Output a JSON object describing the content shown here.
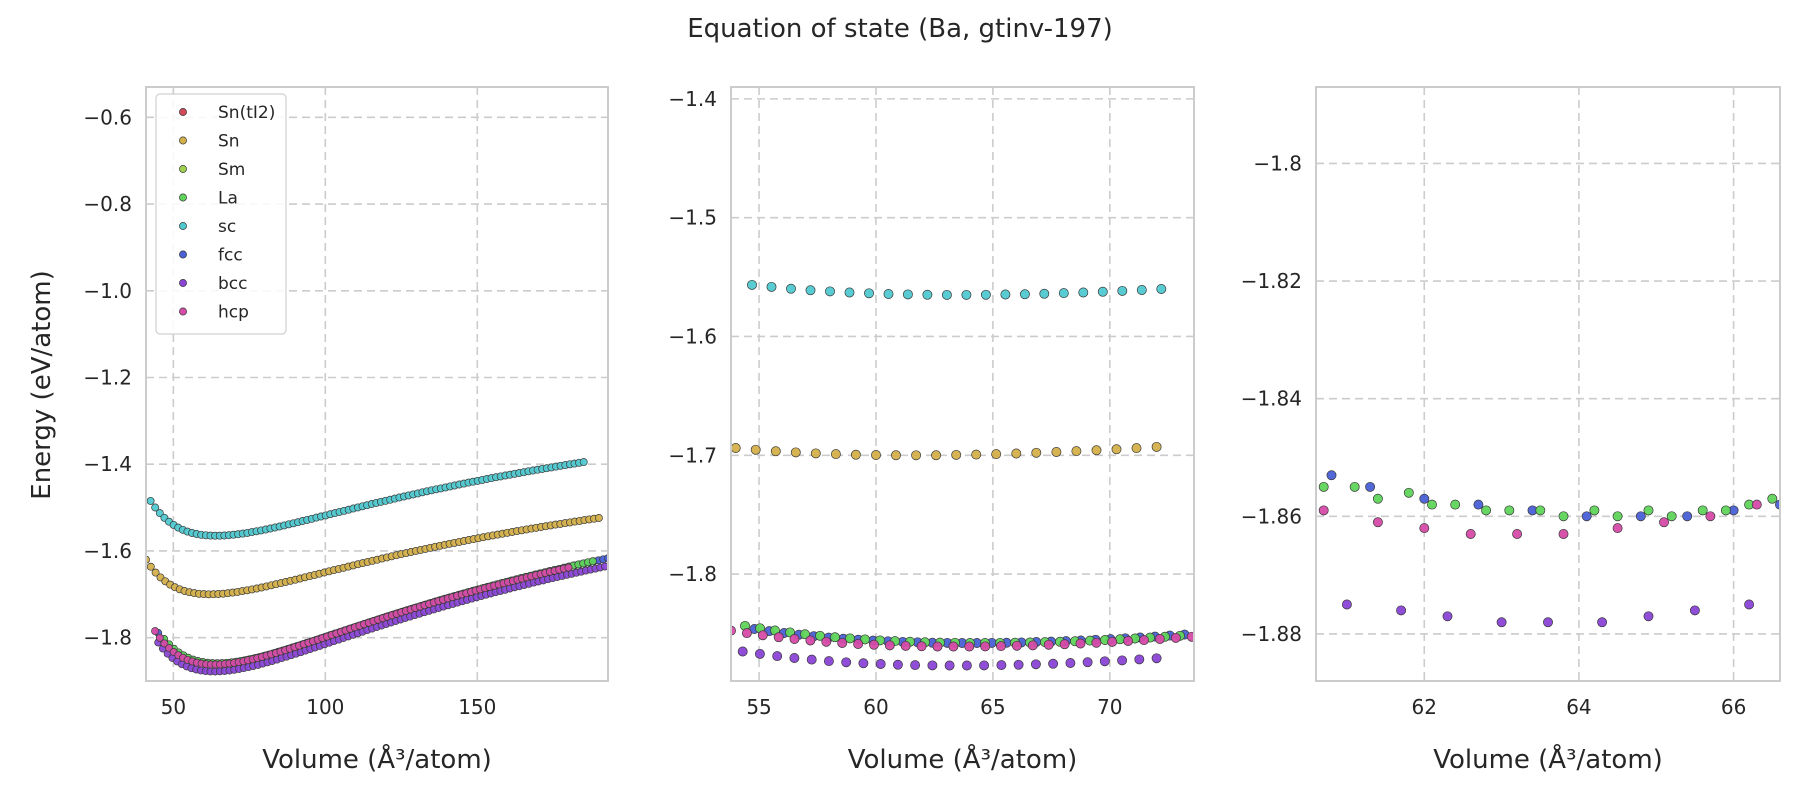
{
  "chart_data": {
    "title": "Equation of state (Ba, gtinv-197)",
    "ylabel": "Energy (eV/atom)",
    "xlabel": "Volume (Å³/atom)",
    "legend": {
      "placement": "upper-left of first panel",
      "entries": [
        {
          "name": "Sn(tI2)",
          "color": "#d1495b"
        },
        {
          "name": "Sn",
          "color": "#d4b04a"
        },
        {
          "name": "Sm",
          "color": "#9fd14f"
        },
        {
          "name": "La",
          "color": "#5fd45a"
        },
        {
          "name": "sc",
          "color": "#4fc9d0"
        },
        {
          "name": "fcc",
          "color": "#4a60d6"
        },
        {
          "name": "bcc",
          "color": "#8a44d6"
        },
        {
          "name": "hcp",
          "color": "#d64aa8"
        }
      ]
    },
    "grid": true,
    "panels": [
      {
        "type": "scatter",
        "xlim": [
          41,
          193
        ],
        "ylim": [
          -1.9,
          -0.53
        ],
        "xticks": [
          50,
          100,
          150
        ],
        "yticks": [
          -1.8,
          -1.6,
          -1.4,
          -1.2,
          -1.0,
          -0.8,
          -0.6
        ],
        "series": [
          {
            "name": "sc",
            "params": {
              "v0": 64,
              "e0": -1.565,
              "b": 0.0105,
              "bp": 4.5,
              "vmin": 42.5,
              "vmax": 185,
              "n": 95
            }
          },
          {
            "name": "Sn",
            "params": {
              "v0": 62,
              "e0": -1.7,
              "b": 0.0105,
              "bp": 4.5,
              "vmin": 41,
              "vmax": 190,
              "n": 95
            }
          },
          {
            "name": "bcc",
            "params": {
              "v0": 63.5,
              "e0": -1.878,
              "b": 0.0135,
              "bp": 4.3,
              "vmin": 45,
              "vmax": 192,
              "n": 95
            }
          },
          {
            "name": "fcc",
            "params": {
              "v0": 64,
              "e0": -1.86,
              "b": 0.0135,
              "bp": 4.3,
              "vmin": 45,
              "vmax": 193,
              "n": 95
            }
          },
          {
            "name": "La",
            "params": {
              "v0": 64.5,
              "e0": -1.859,
              "b": 0.0135,
              "bp": 4.3,
              "vmin": 47,
              "vmax": 188,
              "n": 90
            }
          },
          {
            "name": "hcp",
            "params": {
              "v0": 63.5,
              "e0": -1.862,
              "b": 0.0135,
              "bp": 4.3,
              "vmin": 44,
              "vmax": 180,
              "n": 90
            }
          }
        ]
      },
      {
        "type": "scatter",
        "xlim": [
          53.8,
          73.6
        ],
        "ylim": [
          -1.89,
          -1.39
        ],
        "xticks": [
          55,
          60,
          65,
          70
        ],
        "yticks": [
          -1.8,
          -1.7,
          -1.6,
          -1.5,
          -1.4
        ],
        "series": [
          {
            "name": "sc",
            "params": {
              "v0": 63.5,
              "e0": -1.565,
              "b": 0.0105,
              "bp": 4.5,
              "vmin": 54.7,
              "vmax": 72.2,
              "n": 22
            }
          },
          {
            "name": "Sn",
            "params": {
              "v0": 61.5,
              "e0": -1.7,
              "b": 0.0105,
              "bp": 4.5,
              "vmin": 54,
              "vmax": 72,
              "n": 22
            }
          },
          {
            "name": "fcc",
            "params": {
              "v0": 64,
              "e0": -1.858,
              "b": 0.0135,
              "bp": 4.3,
              "vmin": 54.8,
              "vmax": 73.2,
              "n": 30
            }
          },
          {
            "name": "La",
            "params": {
              "v0": 64.5,
              "e0": -1.858,
              "b": 0.0135,
              "bp": 4.3,
              "vmin": 54.4,
              "vmax": 73,
              "n": 30
            }
          },
          {
            "name": "hcp",
            "params": {
              "v0": 63.5,
              "e0": -1.861,
              "b": 0.0135,
              "bp": 4.3,
              "vmin": 53.8,
              "vmax": 73.5,
              "n": 30
            }
          },
          {
            "name": "bcc",
            "params": {
              "v0": 63.5,
              "e0": -1.877,
              "b": 0.0135,
              "bp": 4.3,
              "vmin": 54.3,
              "vmax": 72,
              "n": 25
            }
          }
        ]
      },
      {
        "type": "scatter",
        "xlim": [
          60.6,
          66.6
        ],
        "ylim": [
          -1.888,
          -1.787
        ],
        "xticks": [
          62,
          64,
          66
        ],
        "yticks": [
          -1.88,
          -1.86,
          -1.84,
          -1.82,
          -1.8
        ],
        "series": [
          {
            "name": "fcc",
            "x": [
              60.8,
              61.3,
              62.0,
              62.7,
              63.4,
              64.1,
              64.8,
              65.4,
              66.0,
              66.6
            ],
            "y": [
              -1.853,
              -1.855,
              -1.857,
              -1.858,
              -1.859,
              -1.86,
              -1.86,
              -1.86,
              -1.859,
              -1.858
            ]
          },
          {
            "name": "La",
            "x": [
              60.7,
              61.1,
              61.4,
              61.8,
              62.1,
              62.4,
              62.8,
              63.1,
              63.5,
              63.8,
              64.2,
              64.5,
              64.9,
              65.2,
              65.6,
              65.9,
              66.2,
              66.5
            ],
            "y": [
              -1.855,
              -1.855,
              -1.857,
              -1.856,
              -1.858,
              -1.858,
              -1.859,
              -1.859,
              -1.859,
              -1.86,
              -1.859,
              -1.86,
              -1.859,
              -1.86,
              -1.859,
              -1.859,
              -1.858,
              -1.857
            ]
          },
          {
            "name": "hcp",
            "x": [
              60.7,
              61.4,
              62.0,
              62.6,
              63.2,
              63.8,
              64.5,
              65.1,
              65.7,
              66.3
            ],
            "y": [
              -1.859,
              -1.861,
              -1.862,
              -1.863,
              -1.863,
              -1.863,
              -1.862,
              -1.861,
              -1.86,
              -1.858
            ]
          },
          {
            "name": "bcc",
            "x": [
              61.0,
              61.7,
              62.3,
              63.0,
              63.6,
              64.3,
              64.9,
              65.5,
              66.2
            ],
            "y": [
              -1.875,
              -1.876,
              -1.877,
              -1.878,
              -1.878,
              -1.878,
              -1.877,
              -1.876,
              -1.875
            ]
          }
        ]
      }
    ]
  }
}
